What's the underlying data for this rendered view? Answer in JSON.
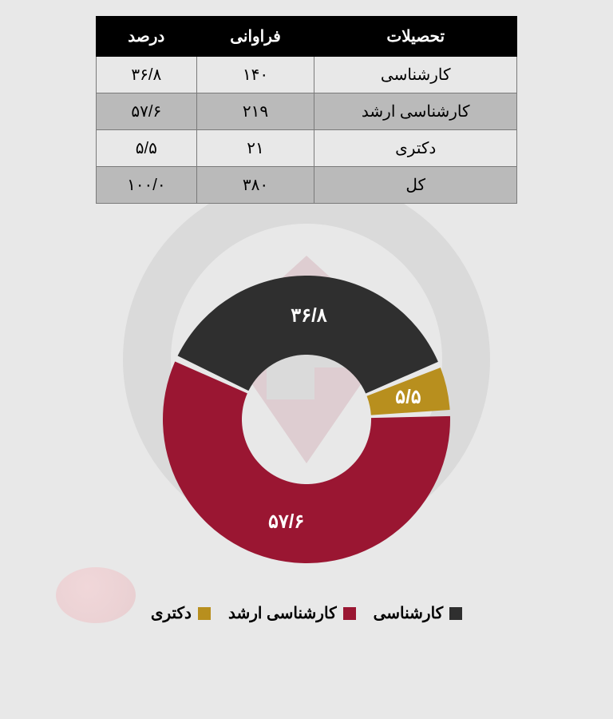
{
  "table": {
    "columns": [
      "تحصیلات",
      "فراوانی",
      "درصد"
    ],
    "rows": [
      {
        "cells": [
          "کارشناسی",
          "۱۴۰",
          "۳۶/۸"
        ],
        "alt": false
      },
      {
        "cells": [
          "کارشناسی ارشد",
          "۲۱۹",
          "۵۷/۶"
        ],
        "alt": true
      },
      {
        "cells": [
          "دکتری",
          "۲۱",
          "۵/۵"
        ],
        "alt": false
      },
      {
        "cells": [
          "کل",
          "۳۸۰",
          "۱۰۰/۰"
        ],
        "alt": true
      }
    ],
    "header_bg": "#000000",
    "header_fg": "#ffffff",
    "border_color": "#7a7a7a",
    "alt_row_bg": "#bababa",
    "font_size": 20
  },
  "chart": {
    "type": "donut",
    "background_color": "#e8e8e8",
    "inner_radius_ratio": 0.45,
    "outer_radius": 180,
    "start_angle_deg": -65,
    "slices": [
      {
        "name": "کارشناسی",
        "value": 36.8,
        "label": "۳۶/۸",
        "color": "#2f2f2f"
      },
      {
        "name": "دکتری",
        "value": 5.5,
        "label": "۵/۵",
        "color": "#b88f1e"
      },
      {
        "name": "کارشناسی ارشد",
        "value": 57.6,
        "label": "۵۷/۶",
        "color": "#9a1632"
      }
    ],
    "gap_deg": 2.5,
    "label_color": "#ffffff",
    "label_fontsize": 24
  },
  "legend": {
    "items": [
      {
        "label": "کارشناسی",
        "color": "#2f2f2f"
      },
      {
        "label": "کارشناسی ارشد",
        "color": "#9a1632"
      },
      {
        "label": "دکتری",
        "color": "#b88f1e"
      }
    ],
    "font_size": 20
  }
}
